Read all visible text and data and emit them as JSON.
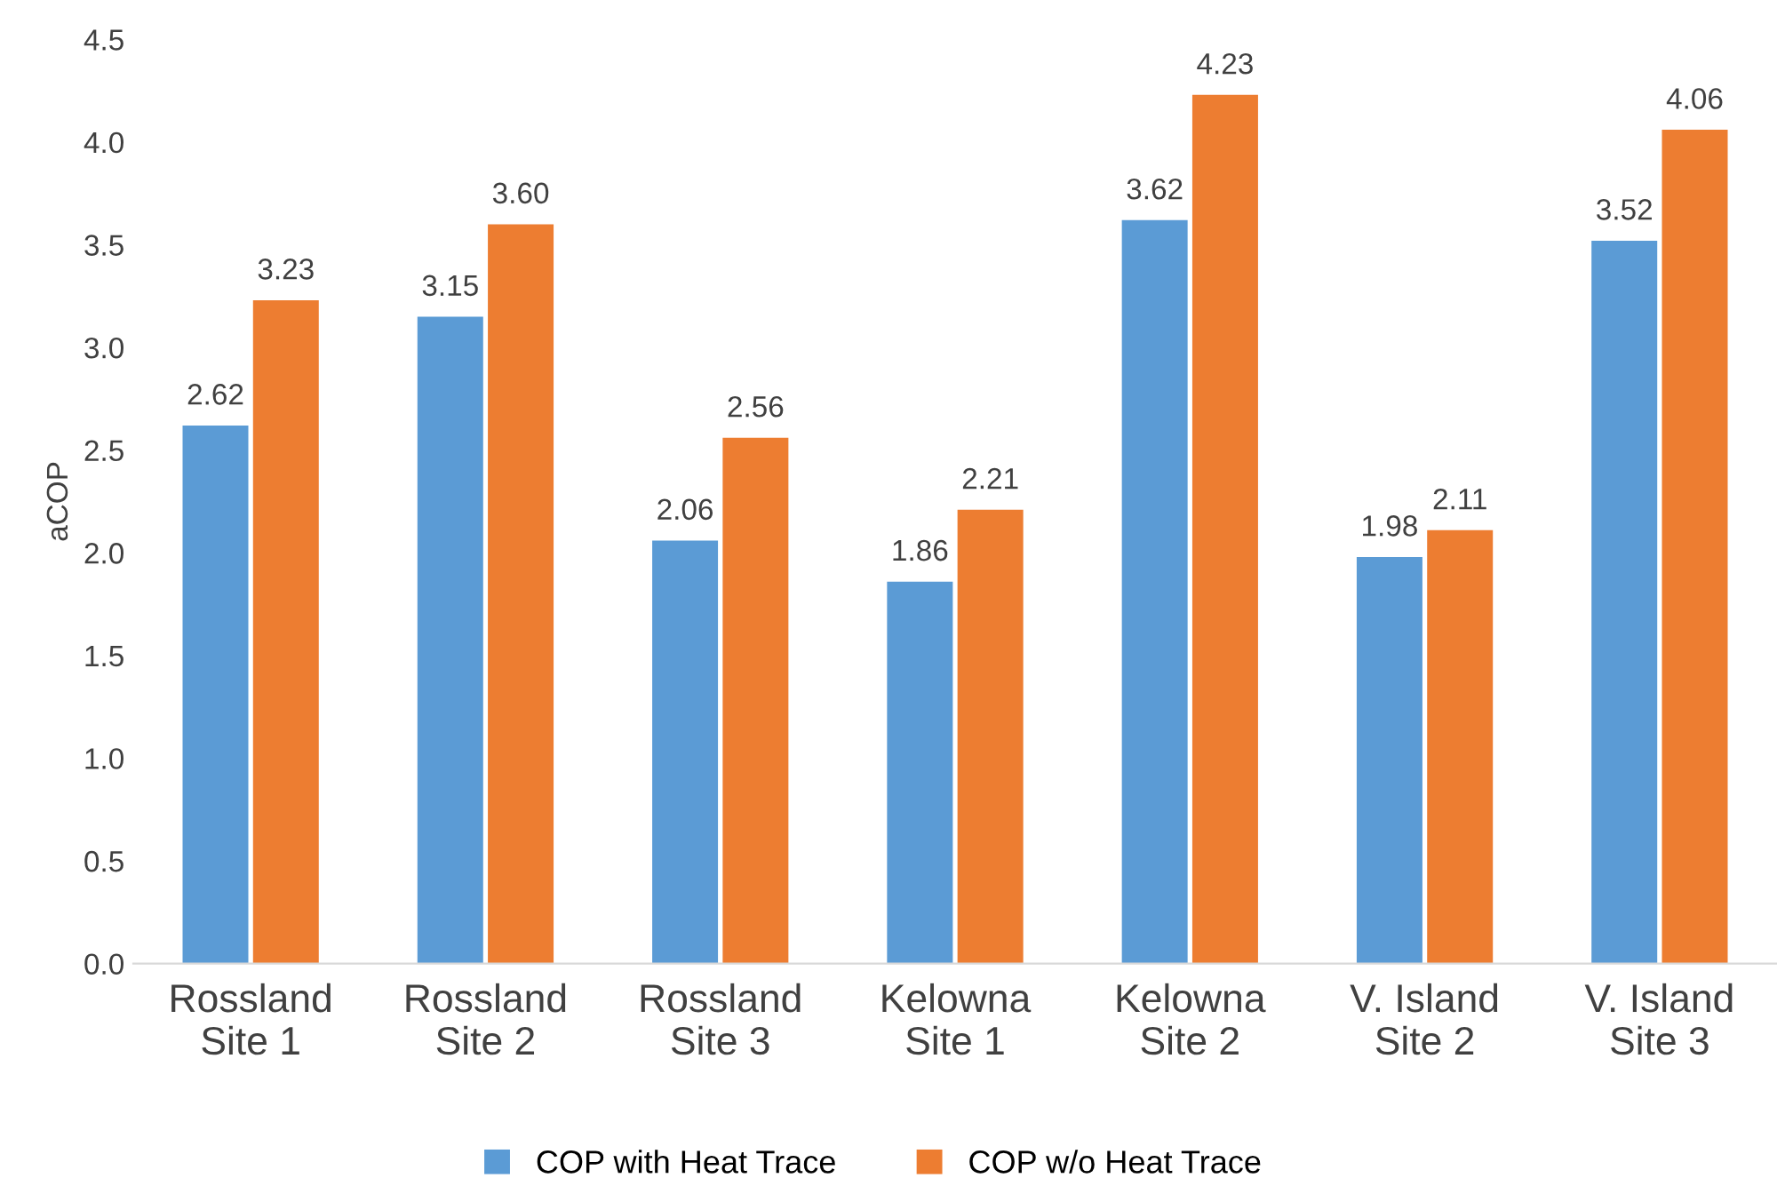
{
  "chart_data": {
    "type": "bar",
    "ylabel": "aCOP",
    "categories": [
      "Rossland\nSite 1",
      "Rossland\nSite 2",
      "Rossland\nSite 3",
      "Kelowna\nSite 1",
      "Kelowna\nSite 2",
      "V. Island\nSite 2",
      "V. Island\nSite 3"
    ],
    "series": [
      {
        "name": "COP with Heat Trace",
        "color": "#5b9bd5",
        "values": [
          2.62,
          3.15,
          2.06,
          1.86,
          3.62,
          1.98,
          3.52
        ]
      },
      {
        "name": "COP w/o Heat Trace",
        "color": "#ed7d31",
        "values": [
          3.23,
          3.6,
          2.56,
          2.21,
          4.23,
          2.11,
          4.06
        ]
      }
    ],
    "ylim": [
      0,
      4.5
    ],
    "yticks": [
      {
        "value": 0,
        "label": "0.0"
      },
      {
        "value": 0.5,
        "label": "0.5"
      },
      {
        "value": 1,
        "label": "1.0"
      },
      {
        "value": 1.5,
        "label": "1.5"
      },
      {
        "value": 2,
        "label": "2.0"
      },
      {
        "value": 2.5,
        "label": "2.5"
      },
      {
        "value": 3,
        "label": "3.0"
      },
      {
        "value": 3.5,
        "label": "3.5"
      },
      {
        "value": 4,
        "label": "4.0"
      },
      {
        "value": 4.5,
        "label": "4.5"
      }
    ],
    "value_labels": [
      [
        "2.62",
        "3.15",
        "2.06",
        "1.86",
        "3.62",
        "1.98",
        "3.52"
      ],
      [
        "3.23",
        "3.60",
        "2.56",
        "2.21",
        "4.23",
        "2.11",
        "4.06"
      ]
    ],
    "grid": false,
    "legend": "bottom"
  }
}
